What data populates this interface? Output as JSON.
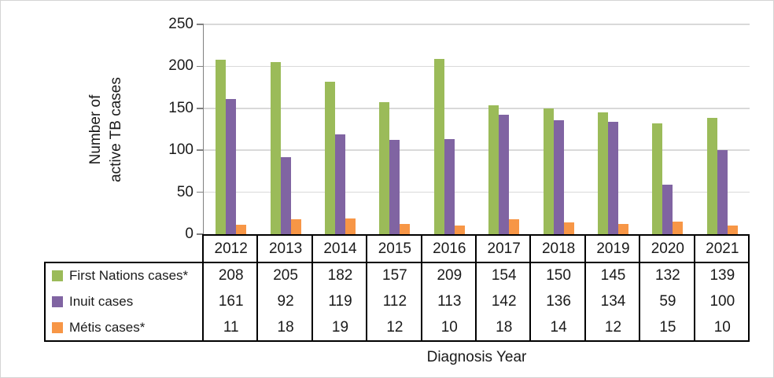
{
  "figure": {
    "x_axis_title": "Diagnosis Year",
    "y_axis_title_line1": "Number of",
    "y_axis_title_line2": "active TB cases"
  },
  "chart_data": {
    "type": "bar",
    "title": "",
    "xlabel": "Diagnosis Year",
    "ylabel": "Number of active TB cases",
    "categories": [
      "2012",
      "2013",
      "2014",
      "2015",
      "2016",
      "2017",
      "2018",
      "2019",
      "2020",
      "2021"
    ],
    "series": [
      {
        "name": "First Nations cases*",
        "color": "#9BBB59",
        "values": [
          208,
          205,
          182,
          157,
          209,
          154,
          150,
          145,
          132,
          139
        ]
      },
      {
        "name": "Inuit cases",
        "color": "#8064A2",
        "values": [
          161,
          92,
          119,
          112,
          113,
          142,
          136,
          134,
          59,
          100
        ]
      },
      {
        "name": "Métis cases*",
        "color": "#F79646",
        "values": [
          11,
          18,
          19,
          12,
          10,
          18,
          14,
          12,
          15,
          10
        ]
      }
    ],
    "ylim": [
      0,
      250
    ],
    "yticks": [
      0,
      50,
      100,
      150,
      200,
      250
    ],
    "grid": "horizontal",
    "legend_position": "table-left",
    "data_table_shown": true,
    "colors": {
      "gridline": "#D9D9D9",
      "axis": "#808080",
      "table_border": "#000000",
      "text": "#1A1A1A"
    }
  }
}
